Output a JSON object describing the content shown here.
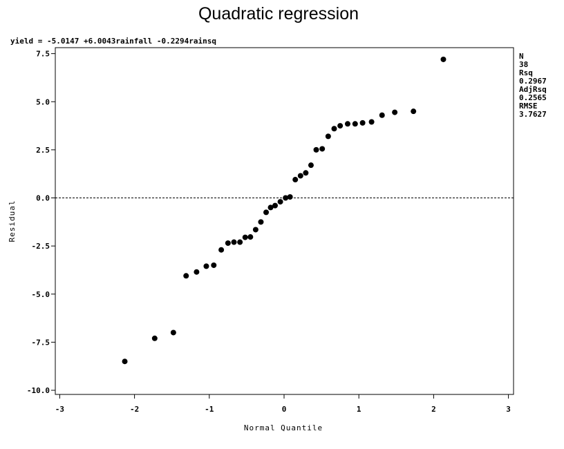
{
  "chart_data": {
    "type": "scatter",
    "title": "Quadratic regression",
    "equation": "yield = -5.0147 +6.0043rainfall -0.2294rainsq",
    "xlabel": "Normal Quantile",
    "ylabel": "Residual",
    "xlim": [
      -3,
      3
    ],
    "ylim": [
      -10,
      7.5
    ],
    "xticks": [
      -3,
      -2,
      -1,
      0,
      1,
      2,
      3
    ],
    "yticks": [
      -10.0,
      -7.5,
      -5.0,
      -2.5,
      0.0,
      2.5,
      5.0,
      7.5
    ],
    "ytick_labels": [
      "-10.0",
      "-7.5",
      "-5.0",
      "-2.5",
      "0.0",
      "2.5",
      "5.0",
      "7.5"
    ],
    "xtick_labels": [
      "-3",
      "-2",
      "-1",
      "0",
      "1",
      "2",
      "3"
    ],
    "reference_line_y": 0,
    "points": [
      [
        -2.13,
        -8.5
      ],
      [
        -1.73,
        -7.3
      ],
      [
        -1.48,
        -7.0
      ],
      [
        -1.31,
        -4.05
      ],
      [
        -1.17,
        -3.85
      ],
      [
        -1.04,
        -3.55
      ],
      [
        -0.94,
        -3.5
      ],
      [
        -0.84,
        -2.7
      ],
      [
        -0.75,
        -2.35
      ],
      [
        -0.67,
        -2.3
      ],
      [
        -0.59,
        -2.3
      ],
      [
        -0.52,
        -2.05
      ],
      [
        -0.45,
        -2.03
      ],
      [
        -0.38,
        -1.65
      ],
      [
        -0.31,
        -1.25
      ],
      [
        -0.24,
        -0.75
      ],
      [
        -0.18,
        -0.5
      ],
      [
        -0.12,
        -0.4
      ],
      [
        -0.05,
        -0.2
      ],
      [
        0.02,
        0.0
      ],
      [
        0.08,
        0.05
      ],
      [
        0.15,
        0.95
      ],
      [
        0.22,
        1.15
      ],
      [
        0.29,
        1.3
      ],
      [
        0.36,
        1.7
      ],
      [
        0.43,
        2.5
      ],
      [
        0.51,
        2.55
      ],
      [
        0.59,
        3.2
      ],
      [
        0.67,
        3.6
      ],
      [
        0.75,
        3.75
      ],
      [
        0.85,
        3.85
      ],
      [
        0.95,
        3.85
      ],
      [
        1.05,
        3.9
      ],
      [
        1.17,
        3.95
      ],
      [
        1.31,
        4.3
      ],
      [
        1.48,
        4.45
      ],
      [
        1.73,
        4.5
      ],
      [
        2.13,
        7.2
      ]
    ],
    "stats": [
      {
        "label": "N",
        "value": "38"
      },
      {
        "label": "Rsq",
        "value": "0.2967"
      },
      {
        "label": "AdjRsq",
        "value": "0.2565"
      },
      {
        "label": "RMSE",
        "value": "3.7627"
      }
    ],
    "grid": false,
    "marker_color": "#000000"
  }
}
